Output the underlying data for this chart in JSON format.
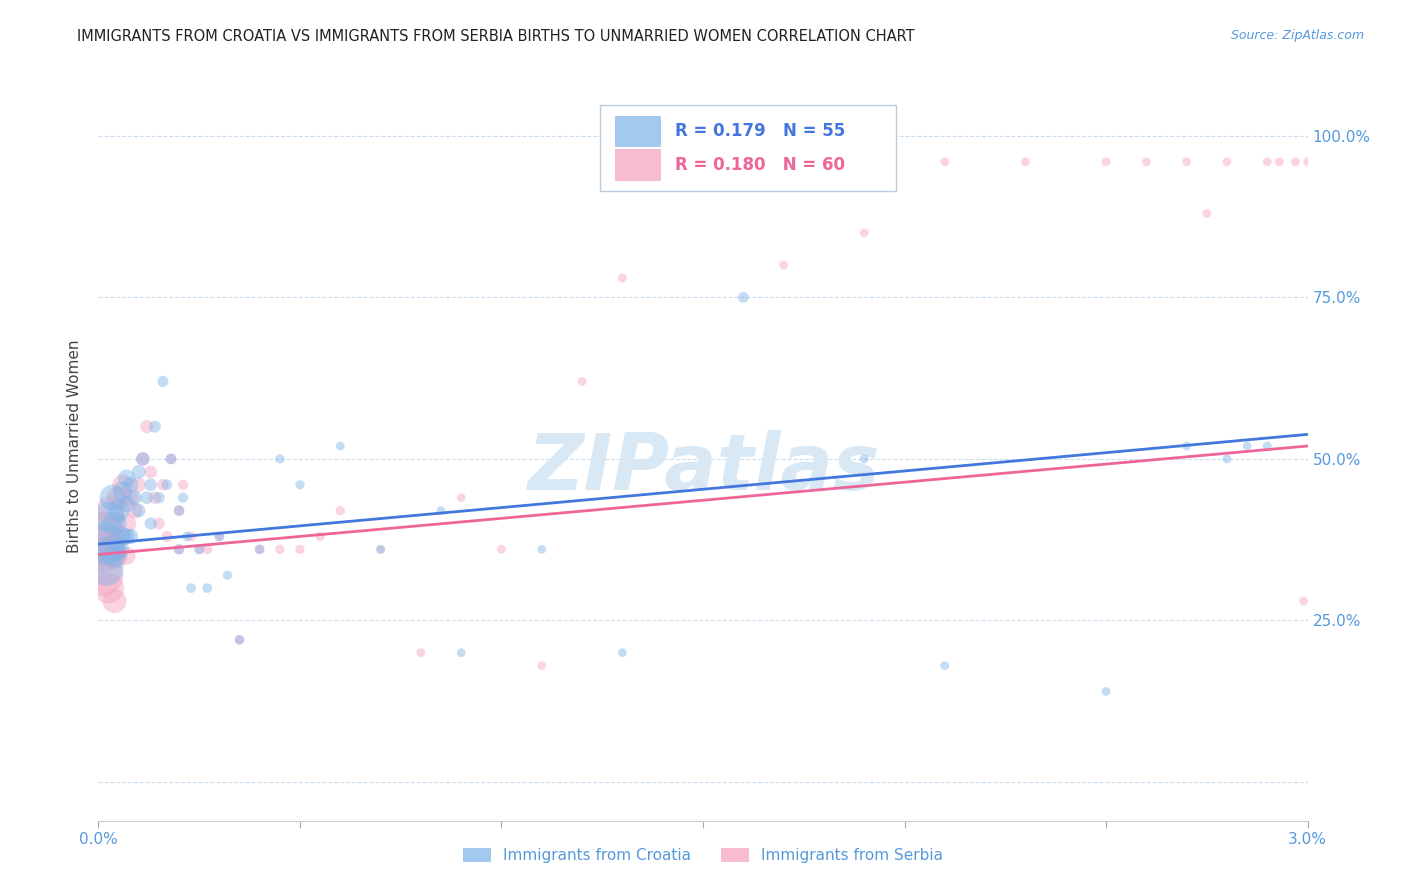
{
  "title": "IMMIGRANTS FROM CROATIA VS IMMIGRANTS FROM SERBIA BIRTHS TO UNMARRIED WOMEN CORRELATION CHART",
  "source": "Source: ZipAtlas.com",
  "ylabel": "Births to Unmarried Women",
  "R_croatia": 0.179,
  "N_croatia": 55,
  "R_serbia": 0.18,
  "N_serbia": 60,
  "color_croatia": "#7EB3E8",
  "color_serbia": "#F4A0C0",
  "color_trendline_croatia": "#4477DD",
  "color_trendline_serbia": "#EE6699",
  "color_axis_labels": "#5599DD",
  "watermark_text": "ZIPatlas",
  "watermark_color": "#D8E8F4",
  "croatia_trend_y0": 0.368,
  "croatia_trend_y1": 0.538,
  "serbia_trend_y0": 0.352,
  "serbia_trend_y1": 0.52,
  "xmin": 0.0,
  "xmax": 0.03,
  "ymin": -0.06,
  "ymax": 1.1,
  "croatia_x": [
    0.00015,
    0.0002,
    0.00025,
    0.0003,
    0.00035,
    0.0004,
    0.0004,
    0.0005,
    0.0005,
    0.0006,
    0.0006,
    0.0007,
    0.0007,
    0.0007,
    0.0008,
    0.0008,
    0.0009,
    0.001,
    0.001,
    0.0011,
    0.0012,
    0.0013,
    0.0013,
    0.0014,
    0.0015,
    0.0016,
    0.0017,
    0.0018,
    0.002,
    0.002,
    0.0021,
    0.0022,
    0.0023,
    0.0025,
    0.0027,
    0.003,
    0.0032,
    0.0035,
    0.004,
    0.0045,
    0.005,
    0.006,
    0.007,
    0.0085,
    0.009,
    0.011,
    0.013,
    0.016,
    0.019,
    0.021,
    0.025,
    0.027,
    0.028,
    0.0285,
    0.029
  ],
  "croatia_y": [
    0.37,
    0.33,
    0.41,
    0.36,
    0.44,
    0.4,
    0.35,
    0.42,
    0.36,
    0.45,
    0.38,
    0.47,
    0.43,
    0.38,
    0.46,
    0.38,
    0.44,
    0.48,
    0.42,
    0.5,
    0.44,
    0.46,
    0.4,
    0.55,
    0.44,
    0.62,
    0.46,
    0.5,
    0.42,
    0.36,
    0.44,
    0.38,
    0.3,
    0.36,
    0.3,
    0.38,
    0.32,
    0.22,
    0.36,
    0.5,
    0.46,
    0.52,
    0.36,
    0.42,
    0.2,
    0.36,
    0.2,
    0.75,
    0.5,
    0.18,
    0.14,
    0.52,
    0.5,
    0.52,
    0.52
  ],
  "croatia_s": [
    900,
    600,
    500,
    400,
    350,
    300,
    280,
    250,
    220,
    200,
    180,
    160,
    150,
    140,
    130,
    120,
    110,
    100,
    95,
    90,
    85,
    80,
    80,
    75,
    70,
    65,
    60,
    60,
    55,
    55,
    55,
    50,
    50,
    50,
    50,
    50,
    45,
    45,
    45,
    45,
    45,
    40,
    40,
    40,
    40,
    40,
    40,
    60,
    40,
    40,
    40,
    40,
    40,
    40,
    40
  ],
  "serbia_x": [
    5e-05,
    0.0001,
    0.00015,
    0.0002,
    0.00025,
    0.0003,
    0.00035,
    0.0004,
    0.0004,
    0.0005,
    0.0005,
    0.0006,
    0.0007,
    0.0007,
    0.0008,
    0.0009,
    0.001,
    0.0011,
    0.0012,
    0.0013,
    0.0014,
    0.0015,
    0.0016,
    0.0017,
    0.0018,
    0.002,
    0.002,
    0.0021,
    0.0023,
    0.0025,
    0.0027,
    0.003,
    0.0035,
    0.004,
    0.0045,
    0.005,
    0.0055,
    0.006,
    0.007,
    0.008,
    0.009,
    0.01,
    0.011,
    0.012,
    0.013,
    0.015,
    0.017,
    0.019,
    0.021,
    0.023,
    0.025,
    0.026,
    0.027,
    0.0275,
    0.028,
    0.029,
    0.0293,
    0.0297,
    0.0299,
    0.03
  ],
  "serbia_y": [
    0.36,
    0.32,
    0.39,
    0.36,
    0.3,
    0.42,
    0.36,
    0.35,
    0.28,
    0.44,
    0.38,
    0.46,
    0.4,
    0.35,
    0.44,
    0.42,
    0.46,
    0.5,
    0.55,
    0.48,
    0.44,
    0.4,
    0.46,
    0.38,
    0.5,
    0.42,
    0.36,
    0.46,
    0.38,
    0.36,
    0.36,
    0.38,
    0.22,
    0.36,
    0.36,
    0.36,
    0.38,
    0.42,
    0.36,
    0.2,
    0.44,
    0.36,
    0.18,
    0.62,
    0.78,
    0.96,
    0.8,
    0.85,
    0.96,
    0.96,
    0.96,
    0.96,
    0.96,
    0.88,
    0.96,
    0.96,
    0.96,
    0.96,
    0.28,
    0.96
  ],
  "serbia_s": [
    1200,
    900,
    700,
    600,
    500,
    450,
    380,
    350,
    300,
    280,
    250,
    220,
    190,
    170,
    150,
    130,
    110,
    100,
    90,
    85,
    80,
    75,
    70,
    65,
    60,
    60,
    55,
    55,
    50,
    50,
    50,
    50,
    50,
    50,
    45,
    45,
    45,
    45,
    40,
    40,
    40,
    40,
    40,
    40,
    40,
    40,
    40,
    40,
    40,
    40,
    40,
    40,
    40,
    40,
    40,
    40,
    40,
    40,
    40,
    40
  ]
}
